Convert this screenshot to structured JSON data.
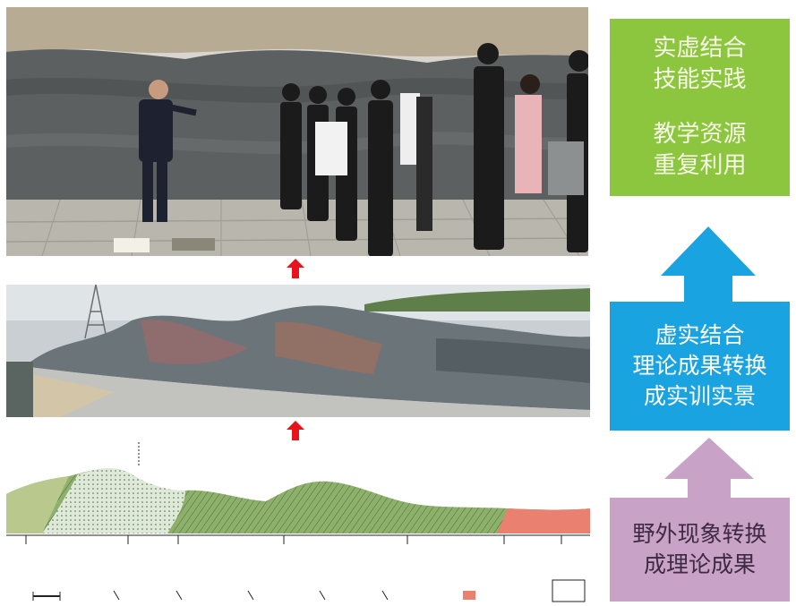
{
  "boxes": {
    "top": {
      "lines": [
        "实虚结合",
        "技能实践",
        "教学资源",
        "重复利用"
      ],
      "color": "#8cc63f"
    },
    "middle": {
      "lines": [
        "虚实结合",
        "理论成果转换",
        "成实训实景"
      ],
      "color": "#1aa3e1"
    },
    "bottom": {
      "lines": [
        "野外现象转换",
        "成理论成果"
      ],
      "color": "#c9a3c7"
    }
  },
  "arrow_colors": {
    "small": "#e8141b",
    "blue": "#1aa3e1",
    "pink": "#c9a3c7"
  },
  "cross_section": {
    "legend": [
      "",
      "",
      "",
      "",
      "",
      "",
      "",
      ""
    ],
    "tick_labels": [
      "",
      "",
      "",
      "",
      "",
      "",
      "",
      ""
    ]
  }
}
